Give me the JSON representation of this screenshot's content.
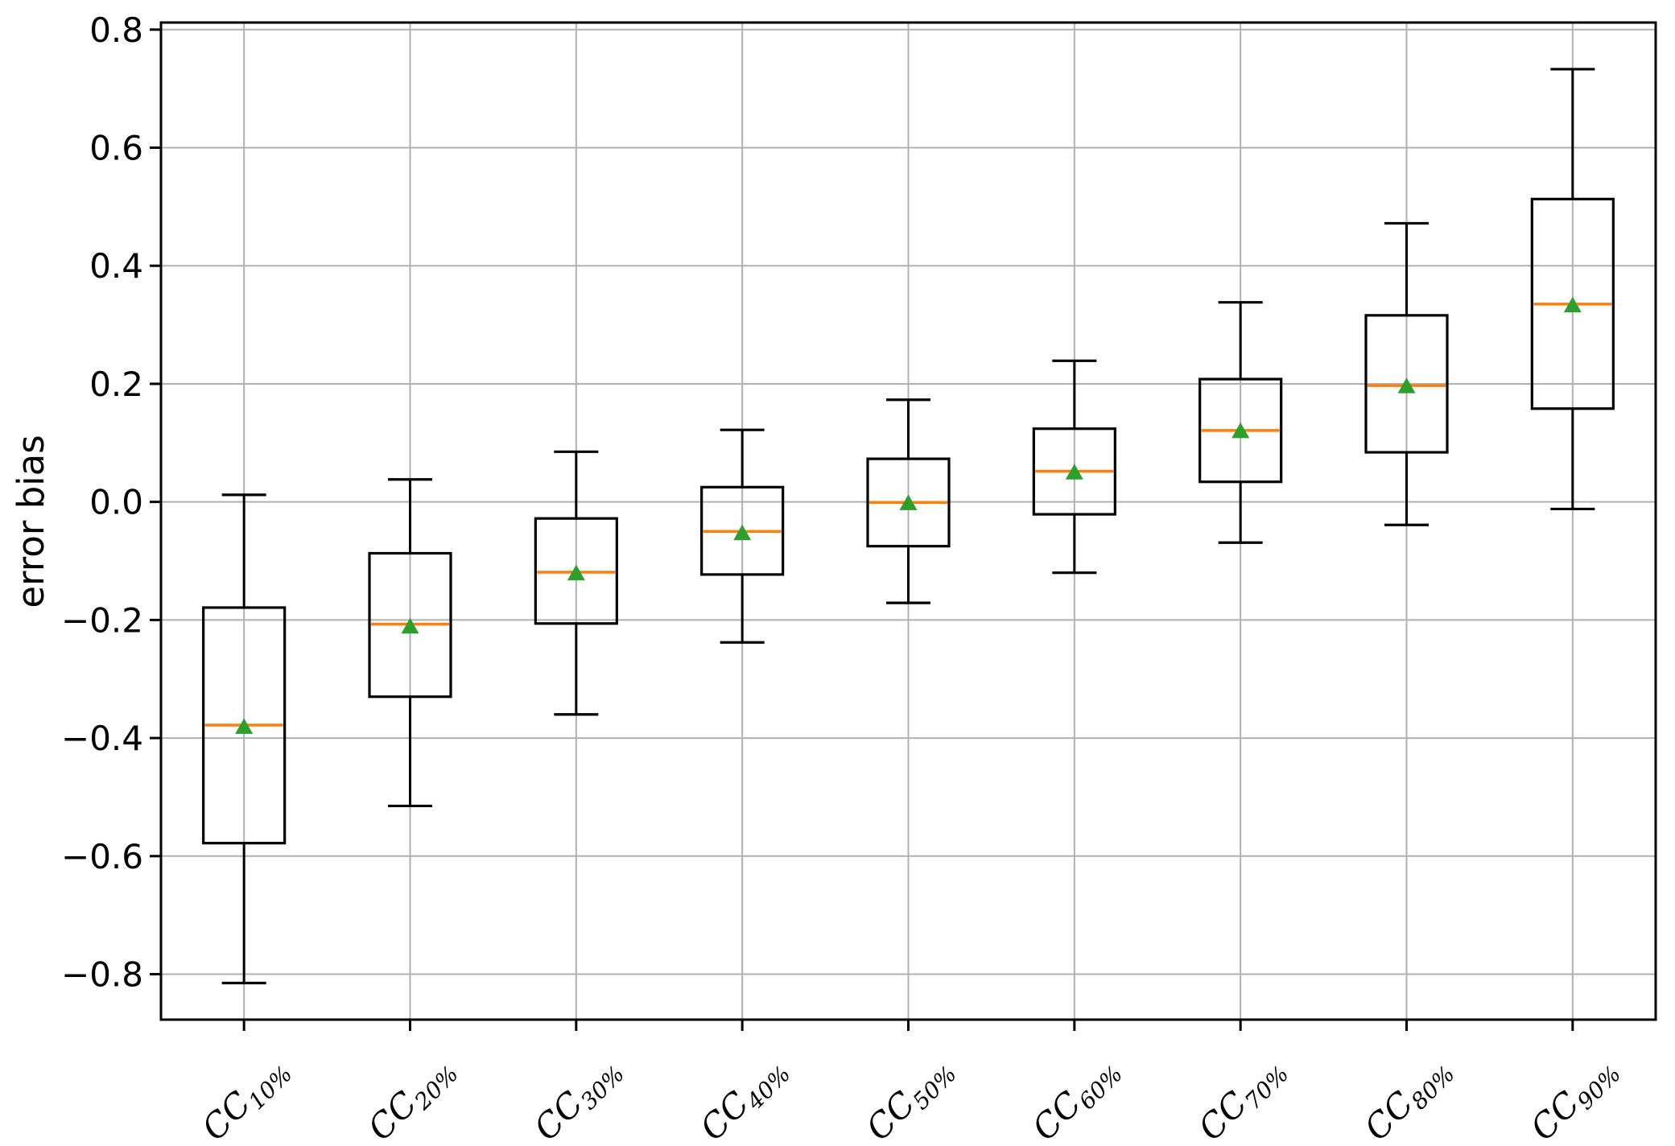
{
  "figure": {
    "background": "#ffffff"
  },
  "chart_data": {
    "type": "boxplot",
    "title": "",
    "xlabel": "",
    "ylabel": "error bias",
    "grid": true,
    "legend": false,
    "ylim": [
      -0.877,
      0.812
    ],
    "yticks": [
      {
        "value": 0.8,
        "label": "0.8"
      },
      {
        "value": 0.6,
        "label": "0.6"
      },
      {
        "value": 0.4,
        "label": "0.4"
      },
      {
        "value": 0.2,
        "label": "0.2"
      },
      {
        "value": 0.0,
        "label": "0.0"
      },
      {
        "value": -0.2,
        "label": "−0.2"
      },
      {
        "value": -0.4,
        "label": "−0.4"
      },
      {
        "value": -0.6,
        "label": "−0.6"
      },
      {
        "value": -0.8,
        "label": "−0.8"
      }
    ],
    "categories": [
      {
        "base": "CC",
        "sub": "10%"
      },
      {
        "base": "CC",
        "sub": "20%"
      },
      {
        "base": "CC",
        "sub": "30%"
      },
      {
        "base": "CC",
        "sub": "40%"
      },
      {
        "base": "CC",
        "sub": "50%"
      },
      {
        "base": "CC",
        "sub": "60%"
      },
      {
        "base": "CC",
        "sub": "70%"
      },
      {
        "base": "CC",
        "sub": "80%"
      },
      {
        "base": "CC",
        "sub": "90%"
      }
    ],
    "boxes": [
      {
        "label": "CC10%",
        "whislo": -0.815,
        "q1": -0.578,
        "med": -0.378,
        "q3": -0.179,
        "whishi": 0.012,
        "mean": -0.38
      },
      {
        "label": "CC20%",
        "whislo": -0.515,
        "q1": -0.33,
        "med": -0.207,
        "q3": -0.087,
        "whishi": 0.038,
        "mean": -0.21
      },
      {
        "label": "CC30%",
        "whislo": -0.36,
        "q1": -0.206,
        "med": -0.119,
        "q3": -0.028,
        "whishi": 0.085,
        "mean": -0.12
      },
      {
        "label": "CC40%",
        "whislo": -0.238,
        "q1": -0.123,
        "med": -0.05,
        "q3": 0.025,
        "whishi": 0.122,
        "mean": -0.052
      },
      {
        "label": "CC50%",
        "whislo": -0.171,
        "q1": -0.075,
        "med": -0.001,
        "q3": 0.073,
        "whishi": 0.173,
        "mean": -0.001
      },
      {
        "label": "CC60%",
        "whislo": -0.12,
        "q1": -0.021,
        "med": 0.052,
        "q3": 0.124,
        "whishi": 0.239,
        "mean": 0.051
      },
      {
        "label": "CC70%",
        "whislo": -0.069,
        "q1": 0.034,
        "med": 0.121,
        "q3": 0.208,
        "whishi": 0.338,
        "mean": 0.121
      },
      {
        "label": "CC80%",
        "whislo": -0.039,
        "q1": 0.084,
        "med": 0.197,
        "q3": 0.316,
        "whishi": 0.472,
        "mean": 0.197
      },
      {
        "label": "CC90%",
        "whislo": -0.012,
        "q1": 0.158,
        "med": 0.335,
        "q3": 0.513,
        "whishi": 0.733,
        "mean": 0.334
      }
    ],
    "colors": {
      "box": "#000000",
      "whisker": "#000000",
      "median": "#ff7f0e",
      "mean_marker": "#2ca02c",
      "grid": "#b0b0b0",
      "axis": "#000000",
      "tick_label": "#000000",
      "background": "#ffffff"
    }
  }
}
